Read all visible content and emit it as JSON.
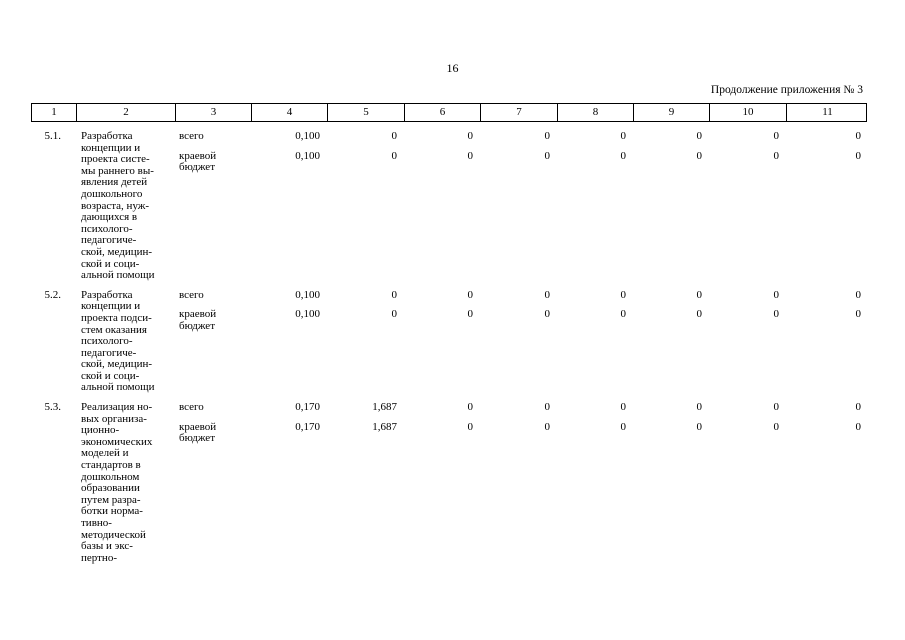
{
  "page_number": "16",
  "caption": "Продолжение приложения № 3",
  "table": {
    "header": [
      "1",
      "2",
      "3",
      "4",
      "5",
      "6",
      "7",
      "8",
      "9",
      "10",
      "11"
    ],
    "rows": [
      {
        "number": "5.1.",
        "name": [
          "Разработка",
          "концепции и",
          "проекта систе-",
          "мы раннего вы-",
          "явления детей",
          "дошкольного",
          "возраста, нуж-",
          "дающихся в",
          "психолого-",
          "педагогиче-",
          "ской, медицин-",
          "ской и соци-",
          "альной помощи"
        ],
        "subrows": [
          {
            "label": [
              "всего"
            ],
            "values": [
              "0,100",
              "0",
              "0",
              "0",
              "0",
              "0",
              "0",
              "0"
            ]
          },
          {
            "label": [
              "краевой",
              "бюджет"
            ],
            "values": [
              "0,100",
              "0",
              "0",
              "0",
              "0",
              "0",
              "0",
              "0"
            ]
          }
        ]
      },
      {
        "number": "5.2.",
        "name": [
          "Разработка",
          "концепции и",
          "проекта подси-",
          "стем оказания",
          "психолого-",
          "педагогиче-",
          "ской, медицин-",
          "ской и соци-",
          "альной помощи"
        ],
        "subrows": [
          {
            "label": [
              "всего"
            ],
            "values": [
              "0,100",
              "0",
              "0",
              "0",
              "0",
              "0",
              "0",
              "0"
            ]
          },
          {
            "label": [
              "краевой",
              "бюджет"
            ],
            "values": [
              "0,100",
              "0",
              "0",
              "0",
              "0",
              "0",
              "0",
              "0"
            ]
          }
        ]
      },
      {
        "number": "5.3.",
        "name": [
          "Реализация но-",
          "вых организа-",
          "ционно-",
          "экономических",
          "моделей и",
          "стандартов в",
          "дошкольном",
          "образовании",
          "путем разра-",
          "ботки норма-",
          "тивно-",
          "методической",
          "базы и экс-",
          "пертно-"
        ],
        "subrows": [
          {
            "label": [
              "всего"
            ],
            "values": [
              "0,170",
              "1,687",
              "0",
              "0",
              "0",
              "0",
              "0",
              "0"
            ]
          },
          {
            "label": [
              "краевой",
              "бюджет"
            ],
            "values": [
              "0,170",
              "1,687",
              "0",
              "0",
              "0",
              "0",
              "0",
              "0"
            ]
          }
        ]
      }
    ]
  }
}
